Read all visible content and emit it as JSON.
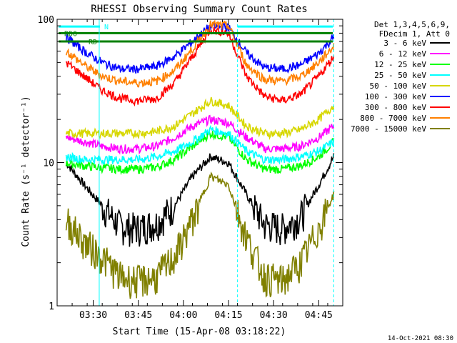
{
  "chart_data": {
    "type": "line",
    "title": "RHESSI Observing Summary Count Rates",
    "xlabel": "Start Time (15-Apr-08 03:18:22)",
    "ylabel": "Count Rate (s⁻¹ detector⁻¹)",
    "yscale": "log",
    "ylim": [
      1,
      100
    ],
    "xlim_minutes_after_0318": [
      0,
      95
    ],
    "x_ticks": [
      "03:30",
      "03:45",
      "04:00",
      "04:15",
      "04:30",
      "04:45"
    ],
    "y_ticks": [
      "1",
      "10",
      "100"
    ],
    "legend_header": [
      "Det 1,3,4,5,6,9,",
      "FDecim 1, Att 0"
    ],
    "legend_placement": "right",
    "markers": [
      "RD0",
      "RD",
      "N"
    ],
    "timestamp": "14-Oct-2021 08:30",
    "series": [
      {
        "name": "3 - 6 keV",
        "color": "#000000",
        "x": [
          "03:21",
          "03:27",
          "03:33",
          "03:39",
          "03:45",
          "03:51",
          "03:57",
          "04:03",
          "04:09",
          "04:15",
          "04:21",
          "04:27",
          "04:33",
          "04:39",
          "04:45",
          "04:50"
        ],
        "y": [
          10,
          7,
          5,
          3.6,
          3.5,
          3.8,
          5,
          8,
          11,
          10,
          6,
          3.7,
          3.5,
          4.2,
          7,
          11
        ]
      },
      {
        "name": "6 - 12 keV",
        "color": "#ff00ff",
        "x": [
          "03:21",
          "03:27",
          "03:33",
          "03:39",
          "03:45",
          "03:51",
          "03:57",
          "04:03",
          "04:09",
          "04:15",
          "04:21",
          "04:27",
          "04:33",
          "04:39",
          "04:45",
          "04:50"
        ],
        "y": [
          15,
          14,
          13,
          12.5,
          12.5,
          13,
          15,
          18,
          20,
          19,
          15,
          12.5,
          12.5,
          13,
          15,
          18
        ]
      },
      {
        "name": "12 - 25 keV",
        "color": "#00ff00",
        "x": [
          "03:21",
          "03:27",
          "03:33",
          "03:39",
          "03:45",
          "03:51",
          "03:57",
          "04:03",
          "04:09",
          "04:15",
          "04:21",
          "04:27",
          "04:33",
          "04:39",
          "04:45",
          "04:50"
        ],
        "y": [
          10,
          9.5,
          9.2,
          9,
          9,
          9.3,
          10.5,
          13,
          16,
          15,
          10.5,
          9,
          9,
          9.5,
          11,
          14
        ]
      },
      {
        "name": "25 - 50 keV",
        "color": "#00ffff",
        "x": [
          "03:21",
          "03:27",
          "03:33",
          "03:39",
          "03:45",
          "03:51",
          "03:57",
          "04:03",
          "04:09",
          "04:15",
          "04:21",
          "04:27",
          "04:33",
          "04:39",
          "04:45",
          "04:50"
        ],
        "y": [
          11,
          10.5,
          10.5,
          10.5,
          10.5,
          11,
          12,
          14,
          17,
          16,
          12,
          10.5,
          10.5,
          11,
          12,
          14
        ]
      },
      {
        "name": "50 - 100 keV",
        "color": "#d7d700",
        "x": [
          "03:21",
          "03:27",
          "03:33",
          "03:39",
          "03:45",
          "03:51",
          "03:57",
          "04:03",
          "04:09",
          "04:15",
          "04:21",
          "04:27",
          "04:33",
          "04:39",
          "04:45",
          "04:50"
        ],
        "y": [
          16,
          16,
          16,
          16,
          16,
          16.5,
          18,
          22,
          27,
          25,
          18,
          16,
          16,
          17,
          20,
          25
        ]
      },
      {
        "name": "100 - 300 keV",
        "color": "#0000ff",
        "x": [
          "03:21",
          "03:27",
          "03:33",
          "03:39",
          "03:45",
          "03:51",
          "03:57",
          "04:03",
          "04:09",
          "04:15",
          "04:21",
          "04:27",
          "04:33",
          "04:39",
          "04:45",
          "04:50"
        ],
        "y": [
          75,
          60,
          50,
          45,
          45,
          47,
          55,
          70,
          90,
          88,
          58,
          46,
          45,
          48,
          58,
          75
        ]
      },
      {
        "name": "300 - 800 keV",
        "color": "#ff0000",
        "x": [
          "03:21",
          "03:27",
          "03:33",
          "03:39",
          "03:45",
          "03:51",
          "03:57",
          "04:03",
          "04:09",
          "04:15",
          "04:21",
          "04:27",
          "04:33",
          "04:39",
          "04:45",
          "04:50"
        ],
        "y": [
          50,
          40,
          32,
          28,
          27,
          28,
          36,
          55,
          85,
          80,
          40,
          29,
          27,
          30,
          40,
          55
        ]
      },
      {
        "name": "800 - 7000 keV",
        "color": "#ff8000",
        "x": [
          "03:21",
          "03:27",
          "03:33",
          "03:39",
          "03:45",
          "03:51",
          "03:57",
          "04:03",
          "04:09",
          "04:15",
          "04:21",
          "04:27",
          "04:33",
          "04:39",
          "04:45",
          "04:50"
        ],
        "y": [
          60,
          48,
          40,
          37,
          36,
          37,
          44,
          62,
          92,
          90,
          48,
          38,
          37,
          40,
          50,
          65
        ]
      },
      {
        "name": "7000 - 15000 keV",
        "color": "#808000",
        "x": [
          "03:21",
          "03:27",
          "03:33",
          "03:39",
          "03:45",
          "03:51",
          "03:57",
          "04:03",
          "04:09",
          "04:15",
          "04:21",
          "04:27",
          "04:33",
          "04:39",
          "04:45",
          "04:50"
        ],
        "y": [
          4,
          2.8,
          2.2,
          1.6,
          1.5,
          1.6,
          2.2,
          4,
          8,
          7,
          3,
          1.6,
          1.5,
          2,
          3.5,
          6
        ]
      }
    ]
  }
}
